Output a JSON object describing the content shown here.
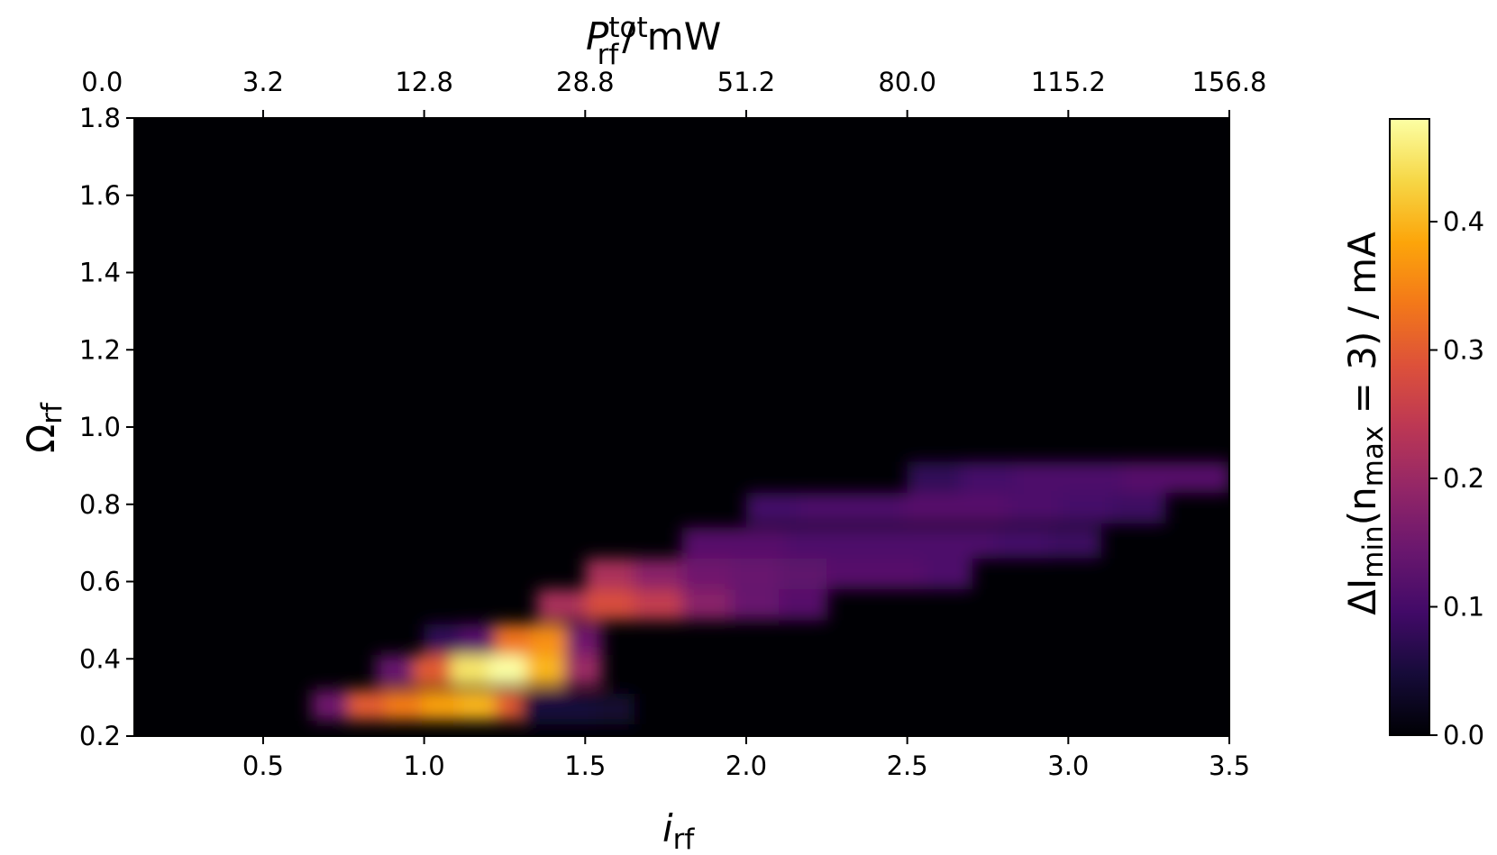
{
  "chart_data": {
    "type": "heatmap",
    "colormap": "inferno",
    "xlabel": {
      "main": "i",
      "sub": "rf"
    },
    "ylabel": {
      "main": "Ω",
      "sub": "rf"
    },
    "top_xlabel": {
      "main": "P",
      "sub": "rf",
      "sup": "tot",
      "unit": "/ mW"
    },
    "colorbar_label": {
      "prefix": "ΔI",
      "sub1": "min",
      "mid": "(n",
      "sub2": "max",
      "end": " = 3) / mA"
    },
    "xlim": [
      0.1,
      3.5
    ],
    "ylim": [
      0.2,
      1.8
    ],
    "clim": [
      0.0,
      0.48
    ],
    "x_ticks": [
      0.5,
      1.0,
      1.5,
      2.0,
      2.5,
      3.0,
      3.5
    ],
    "x_tick_labels": [
      "0.5",
      "1.0",
      "1.5",
      "2.0",
      "2.5",
      "3.0",
      "3.5"
    ],
    "y_ticks": [
      0.2,
      0.4,
      0.6,
      0.8,
      1.0,
      1.2,
      1.4,
      1.6,
      1.8
    ],
    "y_tick_labels": [
      "0.2",
      "0.4",
      "0.6",
      "0.8",
      "1.0",
      "1.2",
      "1.4",
      "1.6",
      "1.8"
    ],
    "top_ticks_i": [
      0.0,
      0.5,
      1.0,
      1.5,
      2.0,
      2.5,
      3.0,
      3.5
    ],
    "top_tick_labels": [
      "0.0",
      "3.2",
      "12.8",
      "28.8",
      "51.2",
      "80.0",
      "115.2",
      "156.8"
    ],
    "colorbar_ticks": [
      0.0,
      0.1,
      0.2,
      0.3,
      0.4
    ],
    "colorbar_tick_labels": [
      "0.0",
      "0.1",
      "0.2",
      "0.3",
      "0.4"
    ],
    "regions": [
      {
        "omega": 0.28,
        "i_from": 0.65,
        "i_to": 1.45,
        "values": [
          0.15,
          0.3,
          0.34,
          0.38,
          0.4,
          0.3,
          0.12
        ]
      },
      {
        "omega": 0.27,
        "i_from": 1.3,
        "i_to": 1.65,
        "values": [
          0.05,
          0.05,
          0.04
        ]
      },
      {
        "omega": 0.37,
        "i_from": 0.85,
        "i_to": 1.55,
        "values": [
          0.14,
          0.3,
          0.45,
          0.48,
          0.4,
          0.2
        ]
      },
      {
        "omega": 0.45,
        "i_from": 1.0,
        "i_to": 1.55,
        "values": [
          0.08,
          0.12,
          0.33,
          0.36,
          0.15
        ]
      },
      {
        "omega": 0.54,
        "i_from": 1.35,
        "i_to": 2.25,
        "values": [
          0.22,
          0.28,
          0.25,
          0.18,
          0.14,
          0.12
        ]
      },
      {
        "omega": 0.62,
        "i_from": 1.5,
        "i_to": 2.7,
        "values": [
          0.22,
          0.18,
          0.15,
          0.14,
          0.13,
          0.12,
          0.12,
          0.11
        ]
      },
      {
        "omega": 0.7,
        "i_from": 1.8,
        "i_to": 3.1,
        "values": [
          0.12,
          0.12,
          0.11,
          0.11,
          0.11,
          0.11,
          0.1,
          0.09
        ]
      },
      {
        "omega": 0.79,
        "i_from": 2.0,
        "i_to": 3.3,
        "values": [
          0.1,
          0.11,
          0.11,
          0.12,
          0.12,
          0.11,
          0.1,
          0.09
        ]
      },
      {
        "omega": 0.87,
        "i_from": 2.5,
        "i_to": 3.5,
        "values": [
          0.08,
          0.1,
          0.11,
          0.11,
          0.12,
          0.12
        ]
      }
    ]
  }
}
